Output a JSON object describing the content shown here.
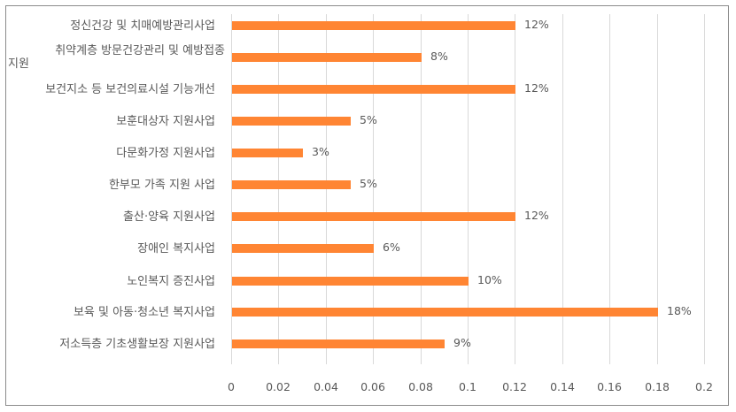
{
  "chart_data": {
    "type": "bar",
    "orientation": "horizontal",
    "title": "",
    "xlabel": "",
    "ylabel": "",
    "xlim": [
      0,
      0.2
    ],
    "grid": true,
    "legend": "none",
    "bar_color": "#ff8533",
    "categories": [
      "정신건강 및 치매예방관리사업",
      "취약계층 방문건강관리 및 예방접종 지원",
      "보건지소 등 보건의료시설 기능개선",
      "보훈대상자 지원사업",
      "다문화가정 지원사업",
      "한부모 가족 지원 사업",
      "출산·양육 지원사업",
      "장애인 복지사업",
      "노인복지 증진사업",
      "보육 및 아동·청소년 복지사업",
      "저소득층 기초생활보장 지원사업"
    ],
    "values": [
      0.12,
      0.08,
      0.12,
      0.05,
      0.03,
      0.05,
      0.12,
      0.06,
      0.1,
      0.18,
      0.09
    ],
    "data_labels": [
      "12%",
      "8%",
      "12%",
      "5%",
      "3%",
      "5%",
      "12%",
      "6%",
      "10%",
      "18%",
      "9%"
    ],
    "x_ticks": [
      "0",
      "0.02",
      "0.04",
      "0.06",
      "0.08",
      "0.1",
      "0.12",
      "0.14",
      "0.16",
      "0.18",
      "0.2"
    ]
  },
  "labels": {
    "cat0_line1": "정신건강 및 치매예방관리사업",
    "cat1_line1": "취약계층 방문건강관리 및 예방접종",
    "cat1_line2": "지원",
    "cat2_line1": "보건지소 등 보건의료시설 기능개선",
    "cat3_line1": "보훈대상자 지원사업",
    "cat4_line1": "다문화가정 지원사업",
    "cat5_line1": "한부모 가족 지원 사업",
    "cat6_line1": "출산·양육 지원사업",
    "cat7_line1": "장애인 복지사업",
    "cat8_line1": "노인복지 증진사업",
    "cat9_line1": "보육 및 아동·청소년 복지사업",
    "cat10_line1": "저소득층 기초생활보장 지원사업"
  }
}
